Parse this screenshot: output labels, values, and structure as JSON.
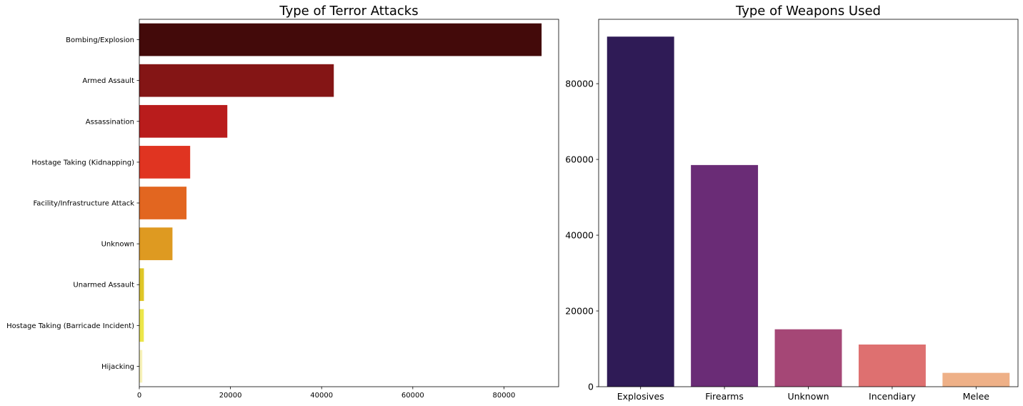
{
  "chart_data": [
    {
      "type": "bar",
      "orientation": "horizontal",
      "title": "Type of Terror Attacks",
      "xlabel": "",
      "ylabel": "",
      "categories": [
        "Bombing/Explosion",
        "Armed Assault",
        "Assassination",
        "Hostage Taking (Kidnapping)",
        "Facility/Infrastructure Attack",
        "Unknown",
        "Unarmed Assault",
        "Hostage Taking (Barricade Incident)",
        "Hijacking"
      ],
      "values": [
        88255,
        42669,
        19312,
        11158,
        10356,
        7276,
        1015,
        991,
        659
      ],
      "colors": [
        "#430a0a",
        "#841515",
        "#b91c1c",
        "#e03421",
        "#e26620",
        "#de9a21",
        "#dfc627",
        "#ece64a",
        "#f7f2b8"
      ],
      "xlim": [
        0,
        92000
      ],
      "xticks": [
        0,
        20000,
        40000,
        60000,
        80000
      ],
      "xtick_labels": [
        "0",
        "20000",
        "40000",
        "60000",
        "80000"
      ],
      "grid": false,
      "legend": false
    },
    {
      "type": "bar",
      "orientation": "vertical",
      "title": "Type of Weapons Used",
      "xlabel": "",
      "ylabel": "",
      "categories": [
        "Explosives",
        "Firearms",
        "Unknown",
        "Incendiary",
        "Melee"
      ],
      "values": [
        92426,
        58524,
        15157,
        11135,
        3655
      ],
      "colors": [
        "#2f1b56",
        "#6a2c76",
        "#a54776",
        "#de7070",
        "#eeb087"
      ],
      "ylim": [
        0,
        97000
      ],
      "yticks": [
        0,
        20000,
        40000,
        60000,
        80000
      ],
      "ytick_labels": [
        "0",
        "20000",
        "40000",
        "60000",
        "80000"
      ],
      "grid": false,
      "legend": false
    }
  ]
}
